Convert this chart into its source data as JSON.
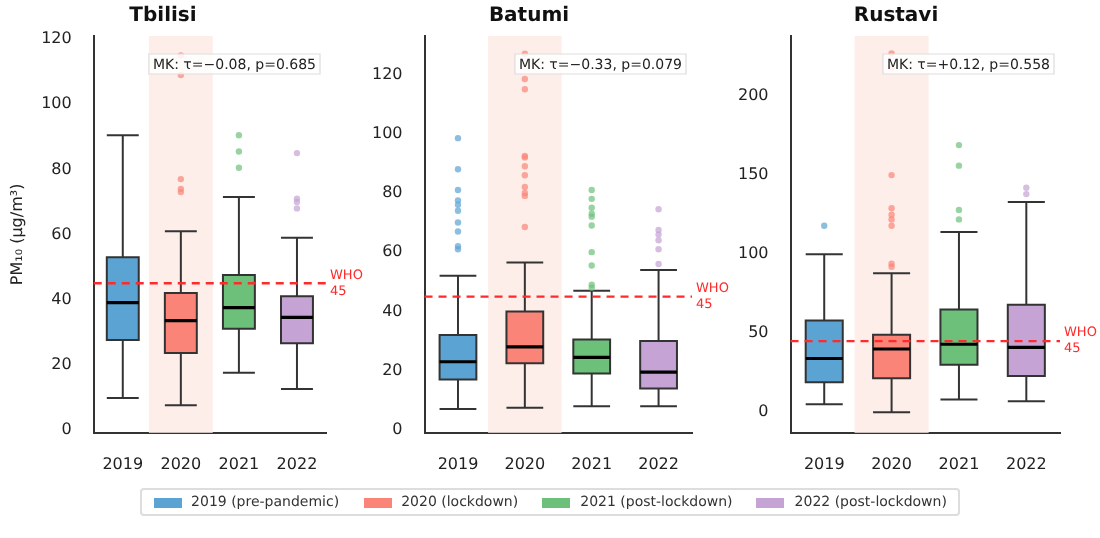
{
  "chart_data": [
    {
      "type": "box",
      "title": "Tbilisi",
      "ylabel": "PM₁₀ (μg/m³)",
      "categories": [
        "2019",
        "2020",
        "2021",
        "2022"
      ],
      "series": [
        {
          "name": "2019 (pre-pandemic)",
          "color": "#5ba3d3",
          "boxes": [
            {
              "low": 9.7,
              "q1": 27.5,
              "median": 39,
              "q3": 53,
              "high": 90.5
            },
            null,
            null,
            null
          ]
        },
        {
          "name": "2020 (lockdown)",
          "color": "#f98477",
          "boxes": [
            null,
            {
              "low": 7.5,
              "q1": 23.5,
              "median": 33.5,
              "q3": 42,
              "high": 61,
              "outliers": [
                115,
                109,
                77,
                74,
                73
              ]
            },
            null,
            null
          ]
        },
        {
          "name": "2021 (post-lockdown)",
          "color": "#6cc07a",
          "boxes": [
            null,
            null,
            {
              "low": 17.5,
              "q1": 31,
              "median": 37.5,
              "q3": 47.5,
              "high": 71.5,
              "outliers": [
                90.5,
                85.5,
                80.5
              ]
            },
            null
          ]
        },
        {
          "name": "2022 (post-lockdown)",
          "color": "#c5a3d4",
          "boxes": [
            null,
            null,
            null,
            {
              "low": 12.5,
              "q1": 26.5,
              "median": 34.5,
              "q3": 41,
              "high": 59,
              "outliers": [
                85,
                71,
                70,
                68
              ]
            }
          ]
        }
      ],
      "ylim": [
        -1,
        121
      ],
      "yticks": [
        0,
        20,
        40,
        60,
        80,
        100,
        120
      ],
      "ref_lines": [
        {
          "axis": "y",
          "value": 45,
          "label": "WHO\n45",
          "color": "#ff2a2a",
          "line_style": "dashed"
        }
      ],
      "bands": [
        {
          "axis": "x",
          "from": "2020",
          "to": "2020",
          "color": "#fdeeea"
        }
      ],
      "annotations": [
        "MK: τ=−0.08, p=0.685"
      ],
      "legend": "bottom",
      "marker": "circle",
      "grid": false
    },
    {
      "type": "box",
      "title": "Batumi",
      "categories": [
        "2019",
        "2020",
        "2021",
        "2022"
      ],
      "series": [
        {
          "color": "#5ba3d3",
          "boxes": [
            {
              "low": 7,
              "q1": 17,
              "median": 23,
              "q3": 32,
              "high": 52,
              "outliers": [
                98.5,
                88,
                81,
                77.5,
                76,
                74,
                70,
                67,
                62,
                61
              ]
            },
            null,
            null,
            null
          ]
        },
        {
          "color": "#f98477",
          "boxes": [
            null,
            {
              "low": 7.5,
              "q1": 22.5,
              "median": 28,
              "q3": 40,
              "high": 56.5,
              "outliers": [
                127,
                118.5,
                115,
                92.5,
                92,
                89,
                86,
                82,
                80,
                79,
                68.5
              ]
            },
            null,
            null
          ]
        },
        {
          "color": "#6cc07a",
          "boxes": [
            null,
            null,
            {
              "low": 8,
              "q1": 19,
              "median": 24.5,
              "q3": 30.5,
              "high": 47,
              "outliers": [
                81,
                78,
                75,
                73,
                72,
                69,
                60,
                55.5,
                49,
                48
              ]
            },
            null
          ]
        },
        {
          "color": "#c5a3d4",
          "boxes": [
            null,
            null,
            null,
            {
              "low": 8,
              "q1": 14,
              "median": 19.5,
              "q3": 30,
              "high": 54,
              "outliers": [
                74.5,
                67.5,
                66,
                64,
                61,
                56
              ]
            }
          ]
        }
      ],
      "ylim": [
        -1,
        133
      ],
      "yticks": [
        0,
        20,
        40,
        60,
        80,
        100,
        120
      ],
      "ref_lines": [
        {
          "axis": "y",
          "value": 45,
          "label": "WHO\n45",
          "color": "#ff2a2a",
          "line_style": "dashed"
        }
      ],
      "bands": [
        {
          "axis": "x",
          "from": "2020",
          "to": "2020",
          "color": "#fdeeea"
        }
      ],
      "annotations": [
        "MK: τ=−0.33, p=0.079"
      ],
      "marker": "circle",
      "grid": false
    },
    {
      "type": "box",
      "title": "Rustavi",
      "categories": [
        "2019",
        "2020",
        "2021",
        "2022"
      ],
      "series": [
        {
          "color": "#5ba3d3",
          "boxes": [
            {
              "low": 5,
              "q1": 19,
              "median": 34,
              "q3": 58,
              "high": 100,
              "outliers": [
                118
              ]
            },
            null,
            null,
            null
          ]
        },
        {
          "color": "#f98477",
          "boxes": [
            null,
            {
              "low": 0,
              "q1": 21.5,
              "median": 40,
              "q3": 49,
              "high": 88,
              "outliers": [
                227,
                218,
                150,
                129,
                125,
                122,
                118,
                94,
                92
              ]
            },
            null,
            null
          ]
        },
        {
          "color": "#6cc07a",
          "boxes": [
            null,
            null,
            {
              "low": 8,
              "q1": 30,
              "median": 43,
              "q3": 65,
              "high": 114,
              "outliers": [
                169,
                156,
                128,
                122
              ]
            },
            null
          ]
        },
        {
          "color": "#c5a3d4",
          "boxes": [
            null,
            null,
            null,
            {
              "low": 7,
              "q1": 23,
              "median": 41,
              "q3": 68,
              "high": 133,
              "outliers": [
                142,
                138
              ]
            }
          ]
        }
      ],
      "ylim": [
        -13,
        238
      ],
      "yticks": [
        0,
        50,
        100,
        150,
        200
      ],
      "ref_lines": [
        {
          "axis": "y",
          "value": 45,
          "label": "WHO\n45",
          "color": "#ff2a2a",
          "line_style": "dashed"
        }
      ],
      "bands": [
        {
          "axis": "x",
          "from": "2020",
          "to": "2020",
          "color": "#fdeeea"
        }
      ],
      "annotations": [
        "MK: τ=+0.12, p=0.558"
      ],
      "marker": "circle",
      "grid": false
    }
  ]
}
